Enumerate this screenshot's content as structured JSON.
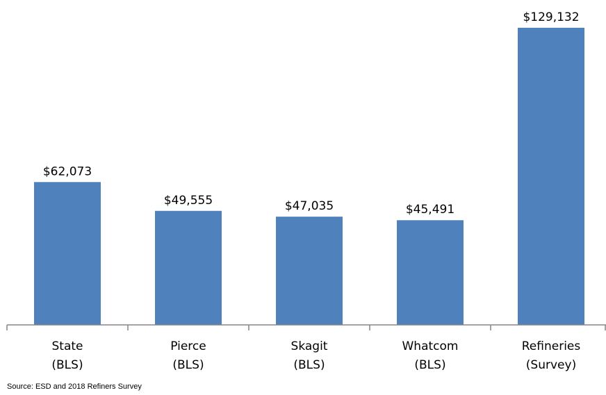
{
  "chart_data": {
    "type": "bar",
    "categories": [
      "State\n(BLS)",
      "Pierce\n(BLS)",
      "Skagit\n(BLS)",
      "Whatcom\n(BLS)",
      "Refineries\n(Survey)"
    ],
    "values": [
      62073,
      49555,
      47035,
      45491,
      129132
    ],
    "value_labels": [
      "$62,073",
      "$49,555",
      "$47,035",
      "$45,491",
      "$129,132"
    ],
    "color": "#4f81bd",
    "ylim": [
      0,
      140000
    ],
    "source": "Source: ESD and 2018 Refiners Survey"
  }
}
